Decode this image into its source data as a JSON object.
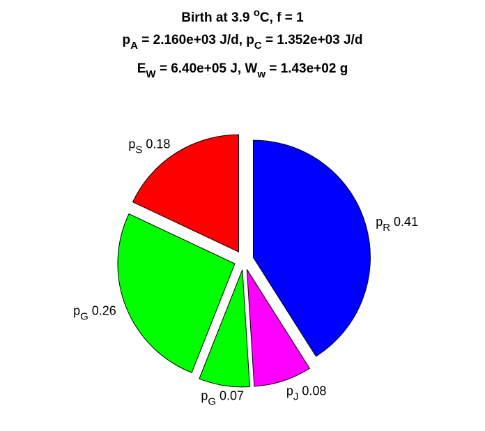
{
  "chart_data": {
    "type": "pie",
    "title_lines": [
      {
        "parts": [
          {
            "text": "Birth at 3.9 "
          },
          {
            "text": "o",
            "style": "sup"
          },
          {
            "text": "C, f = 1"
          }
        ]
      },
      {
        "parts": [
          {
            "text": "p"
          },
          {
            "text": "A",
            "style": "sub"
          },
          {
            "text": " = 2.160e+03 J/d, p"
          },
          {
            "text": "C",
            "style": "sub"
          },
          {
            "text": " = 1.352e+03 J/d"
          }
        ]
      },
      {
        "parts": [
          {
            "text": "E"
          },
          {
            "text": "W",
            "style": "sub"
          },
          {
            "text": " = 6.40e+05 J, W"
          },
          {
            "text": "w",
            "style": "sub"
          },
          {
            "text": " = 1.43e+02 g"
          }
        ]
      }
    ],
    "slices": [
      {
        "symbol": "p",
        "subscript": "R",
        "value": 0.41,
        "value_label": "0.41",
        "color": "#0000ff"
      },
      {
        "symbol": "p",
        "subscript": "J",
        "value": 0.08,
        "value_label": "0.08",
        "color": "#ff00ff"
      },
      {
        "symbol": "p",
        "subscript": "G",
        "value": 0.07,
        "value_label": "0.07",
        "color": "#00ff00"
      },
      {
        "symbol": "p",
        "subscript": "G",
        "value": 0.26,
        "value_label": "0.26",
        "color": "#00ff00"
      },
      {
        "symbol": "p",
        "subscript": "S",
        "value": 0.18,
        "value_label": "0.18",
        "color": "#ff0000"
      }
    ],
    "start_angle": "12 o'clock",
    "direction": "clockwise",
    "exploded": true
  }
}
